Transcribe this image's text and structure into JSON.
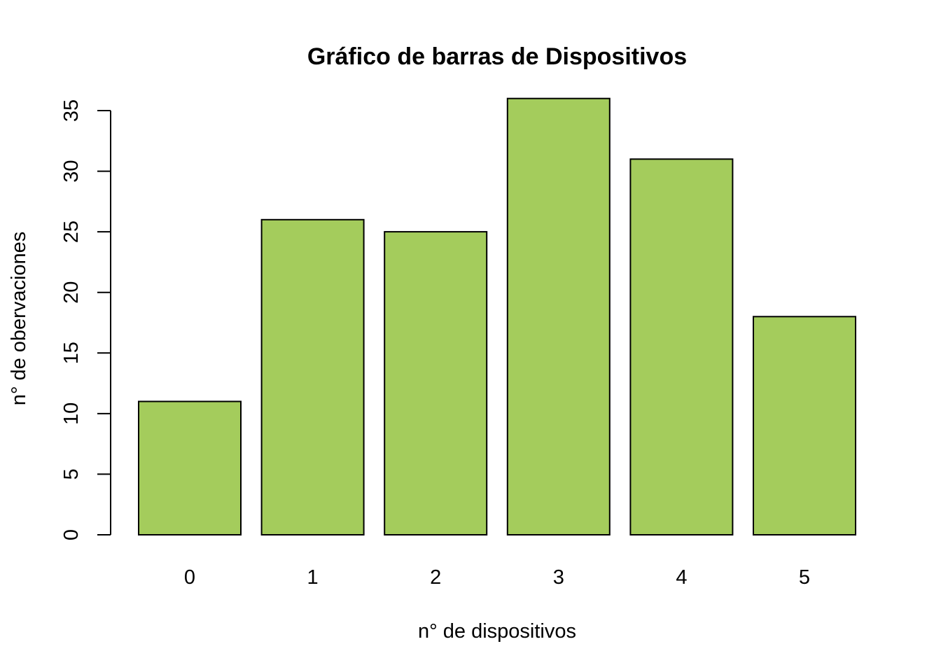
{
  "chart_data": {
    "type": "bar",
    "title": "Gráfico de barras de Dispositivos",
    "xlabel": "n° de dispositivos",
    "ylabel": "n° de obervaciones",
    "categories": [
      "0",
      "1",
      "2",
      "3",
      "4",
      "5"
    ],
    "values": [
      11,
      26,
      25,
      36,
      31,
      18
    ],
    "ylim": [
      0,
      35
    ],
    "yticks": [
      0,
      5,
      10,
      15,
      20,
      25,
      30,
      35
    ],
    "ytick_labels": [
      "0",
      "5",
      "10",
      "15",
      "20",
      "25",
      "30",
      "35"
    ],
    "grid": false,
    "legend": "none",
    "bar_color": "#a4cc5c",
    "bar_border_color": "#000000"
  }
}
